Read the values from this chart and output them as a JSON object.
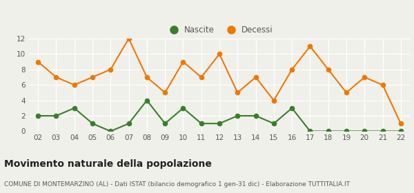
{
  "years": [
    "02",
    "03",
    "04",
    "05",
    "06",
    "07",
    "08",
    "09",
    "10",
    "11",
    "12",
    "13",
    "14",
    "15",
    "16",
    "17",
    "18",
    "19",
    "20",
    "21",
    "22"
  ],
  "nascite": [
    2,
    2,
    3,
    1,
    0,
    1,
    4,
    1,
    3,
    1,
    1,
    2,
    2,
    1,
    3,
    0,
    0,
    0,
    0,
    0,
    0
  ],
  "decessi": [
    9,
    7,
    6,
    7,
    8,
    12,
    7,
    5,
    9,
    7,
    10,
    5,
    7,
    4,
    8,
    11,
    8,
    5,
    7,
    6,
    1
  ],
  "nascite_color": "#3a7d2c",
  "decessi_color": "#f07800",
  "background_color": "#f0f0eb",
  "grid_color": "#ffffff",
  "ylim": [
    0,
    12
  ],
  "yticks": [
    0,
    2,
    4,
    6,
    8,
    10,
    12
  ],
  "title": "Movimento naturale della popolazione",
  "subtitle": "COMUNE DI MONTEMARZINO (AL) - Dati ISTAT (bilancio demografico 1 gen-31 dic) - Elaborazione TUTTITALIA.IT",
  "legend_nascite": "Nascite",
  "legend_decessi": "Decessi",
  "title_fontsize": 10,
  "subtitle_fontsize": 6.5,
  "tick_fontsize": 7.5,
  "legend_fontsize": 8.5,
  "marker_size": 4.5,
  "line_width": 1.5
}
